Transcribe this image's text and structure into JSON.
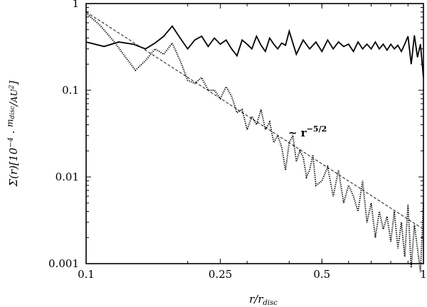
{
  "chart_data": {
    "type": "line",
    "xscale": "log",
    "yscale": "log",
    "xlim": [
      0.1,
      1
    ],
    "ylim": [
      0.001,
      1
    ],
    "x_ticks": [
      0.1,
      0.25,
      0.5,
      1
    ],
    "x_tick_labels": [
      "0.1",
      "0.25",
      "0.5",
      "1"
    ],
    "y_ticks": [
      0.001,
      0.01,
      0.1,
      1
    ],
    "y_tick_labels": [
      "0.001",
      "0.01",
      "0.1",
      "1"
    ],
    "xlabel": "r/r_disc",
    "ylabel": "Σ(r)[10^-4 · m_disc/AU^2]",
    "annotation": "~ r^(-5/2)",
    "series": [
      {
        "style": "solid",
        "x": [
          0.1,
          0.113,
          0.125,
          0.138,
          0.15,
          0.16,
          0.17,
          0.18,
          0.19,
          0.2,
          0.21,
          0.22,
          0.23,
          0.24,
          0.25,
          0.26,
          0.27,
          0.28,
          0.29,
          0.3,
          0.31,
          0.32,
          0.33,
          0.34,
          0.35,
          0.36,
          0.37,
          0.38,
          0.39,
          0.4,
          0.42,
          0.44,
          0.46,
          0.48,
          0.5,
          0.52,
          0.54,
          0.56,
          0.58,
          0.6,
          0.62,
          0.64,
          0.66,
          0.68,
          0.7,
          0.72,
          0.74,
          0.76,
          0.78,
          0.8,
          0.82,
          0.84,
          0.86,
          0.88,
          0.9,
          0.92,
          0.94,
          0.96,
          0.98,
          1.0
        ],
        "y": [
          0.36,
          0.32,
          0.36,
          0.34,
          0.3,
          0.35,
          0.42,
          0.55,
          0.4,
          0.3,
          0.38,
          0.42,
          0.32,
          0.4,
          0.34,
          0.38,
          0.3,
          0.25,
          0.38,
          0.34,
          0.3,
          0.42,
          0.33,
          0.28,
          0.4,
          0.34,
          0.3,
          0.35,
          0.33,
          0.48,
          0.26,
          0.38,
          0.3,
          0.36,
          0.28,
          0.38,
          0.3,
          0.36,
          0.32,
          0.34,
          0.28,
          0.36,
          0.3,
          0.34,
          0.3,
          0.36,
          0.3,
          0.34,
          0.29,
          0.34,
          0.3,
          0.33,
          0.28,
          0.34,
          0.42,
          0.2,
          0.43,
          0.24,
          0.34,
          0.14
        ]
      },
      {
        "style": "dotted",
        "x": [
          0.1,
          0.11,
          0.12,
          0.13,
          0.14,
          0.15,
          0.16,
          0.17,
          0.18,
          0.19,
          0.2,
          0.21,
          0.22,
          0.23,
          0.24,
          0.25,
          0.26,
          0.27,
          0.28,
          0.29,
          0.3,
          0.31,
          0.32,
          0.33,
          0.34,
          0.35,
          0.36,
          0.37,
          0.38,
          0.39,
          0.4,
          0.41,
          0.42,
          0.43,
          0.44,
          0.45,
          0.46,
          0.47,
          0.48,
          0.5,
          0.52,
          0.54,
          0.56,
          0.58,
          0.6,
          0.62,
          0.64,
          0.66,
          0.68,
          0.7,
          0.72,
          0.74,
          0.76,
          0.78,
          0.8,
          0.82,
          0.84,
          0.86,
          0.88,
          0.9,
          0.92,
          0.94,
          0.96,
          0.98,
          1.0
        ],
        "y": [
          0.78,
          0.56,
          0.38,
          0.25,
          0.17,
          0.22,
          0.3,
          0.26,
          0.35,
          0.22,
          0.13,
          0.12,
          0.14,
          0.1,
          0.1,
          0.08,
          0.11,
          0.085,
          0.055,
          0.06,
          0.035,
          0.05,
          0.04,
          0.06,
          0.035,
          0.043,
          0.025,
          0.03,
          0.022,
          0.012,
          0.025,
          0.03,
          0.015,
          0.02,
          0.017,
          0.01,
          0.012,
          0.018,
          0.008,
          0.009,
          0.013,
          0.006,
          0.012,
          0.005,
          0.008,
          0.006,
          0.004,
          0.009,
          0.003,
          0.005,
          0.002,
          0.004,
          0.0025,
          0.0035,
          0.0018,
          0.004,
          0.0015,
          0.003,
          0.0012,
          0.0048,
          0.0009,
          0.0028,
          0.0015,
          0.0008,
          0.005
        ]
      },
      {
        "style": "dashed",
        "x": [
          0.1,
          1.0
        ],
        "y": [
          0.8,
          0.0025
        ]
      }
    ]
  }
}
